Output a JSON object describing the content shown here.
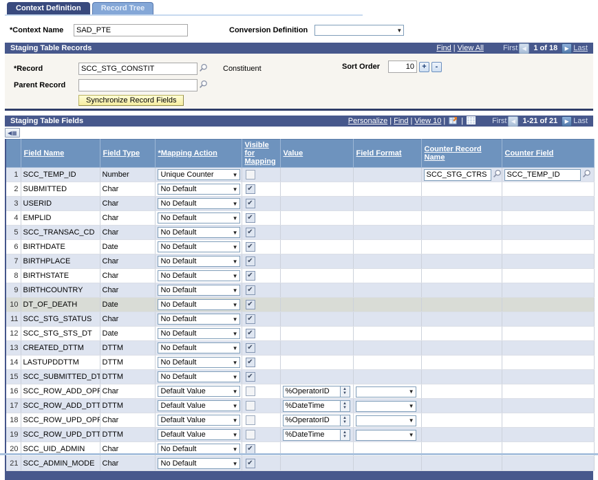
{
  "tabs": [
    {
      "label": "Context Definition",
      "active": true
    },
    {
      "label": "Record Tree",
      "active": false
    }
  ],
  "header": {
    "context_name_label": "*Context Name",
    "context_name_value": "SAD_PTE",
    "conversion_definition_label": "Conversion Definition",
    "conversion_definition_value": ""
  },
  "records_section": {
    "title": "Staging Table Records",
    "nav": {
      "find": "Find",
      "view_all": "View All",
      "first": "First",
      "position": "1 of 18",
      "last": "Last"
    },
    "record_label": "*Record",
    "record_value": "SCC_STG_CONSTIT",
    "record_description": "Constituent",
    "sort_order_label": "Sort Order",
    "sort_order_value": "10",
    "plus_label": "+",
    "minus_label": "-",
    "parent_record_label": "Parent Record",
    "parent_record_value": "",
    "sync_button_label": "Synchronize Record Fields"
  },
  "fields_section": {
    "title": "Staging Table Fields",
    "toolbar": {
      "personalize": "Personalize",
      "find": "Find",
      "view": "View 10",
      "first": "First",
      "position": "1-21 of 21",
      "last": "Last"
    },
    "columns": [
      "Field Name",
      "Field Type",
      "*Mapping Action",
      "Visible for Mapping",
      "Value",
      "Field Format",
      "Counter Record Name",
      "Counter Field"
    ],
    "rows": [
      {
        "num": 1,
        "field_name": "SCC_TEMP_ID",
        "field_type": "Number",
        "mapping_action": "Unique Counter",
        "visible": false,
        "counter_record": "SCC_STG_CTRS",
        "counter_field": "SCC_TEMP_ID"
      },
      {
        "num": 2,
        "field_name": "SUBMITTED",
        "field_type": "Char",
        "mapping_action": "No Default",
        "visible": true
      },
      {
        "num": 3,
        "field_name": "USERID",
        "field_type": "Char",
        "mapping_action": "No Default",
        "visible": true
      },
      {
        "num": 4,
        "field_name": "EMPLID",
        "field_type": "Char",
        "mapping_action": "No Default",
        "visible": true
      },
      {
        "num": 5,
        "field_name": "SCC_TRANSAC_CD",
        "field_type": "Char",
        "mapping_action": "No Default",
        "visible": true
      },
      {
        "num": 6,
        "field_name": "BIRTHDATE",
        "field_type": "Date",
        "mapping_action": "No Default",
        "visible": true
      },
      {
        "num": 7,
        "field_name": "BIRTHPLACE",
        "field_type": "Char",
        "mapping_action": "No Default",
        "visible": true
      },
      {
        "num": 8,
        "field_name": "BIRTHSTATE",
        "field_type": "Char",
        "mapping_action": "No Default",
        "visible": true
      },
      {
        "num": 9,
        "field_name": "BIRTHCOUNTRY",
        "field_type": "Char",
        "mapping_action": "No Default",
        "visible": true
      },
      {
        "num": 10,
        "field_name": "DT_OF_DEATH",
        "field_type": "Date",
        "mapping_action": "No Default",
        "visible": true,
        "shaded": true
      },
      {
        "num": 11,
        "field_name": "SCC_STG_STATUS",
        "field_type": "Char",
        "mapping_action": "No Default",
        "visible": true
      },
      {
        "num": 12,
        "field_name": "SCC_STG_STS_DT",
        "field_type": "Date",
        "mapping_action": "No Default",
        "visible": true
      },
      {
        "num": 13,
        "field_name": "CREATED_DTTM",
        "field_type": "DTTM",
        "mapping_action": "No Default",
        "visible": true
      },
      {
        "num": 14,
        "field_name": "LASTUPDDTTM",
        "field_type": "DTTM",
        "mapping_action": "No Default",
        "visible": true
      },
      {
        "num": 15,
        "field_name": "SCC_SUBMITTED_DTTM",
        "field_type": "DTTM",
        "mapping_action": "No Default",
        "visible": true
      },
      {
        "num": 16,
        "field_name": "SCC_ROW_ADD_OPRID",
        "field_type": "Char",
        "mapping_action": "Default Value",
        "visible": false,
        "value": "%OperatorID",
        "has_format": true
      },
      {
        "num": 17,
        "field_name": "SCC_ROW_ADD_DTTM",
        "field_type": "DTTM",
        "mapping_action": "Default Value",
        "visible": false,
        "value": "%DateTime",
        "has_format": true
      },
      {
        "num": 18,
        "field_name": "SCC_ROW_UPD_OPRID",
        "field_type": "Char",
        "mapping_action": "Default Value",
        "visible": false,
        "value": "%OperatorID",
        "has_format": true
      },
      {
        "num": 19,
        "field_name": "SCC_ROW_UPD_DTTM",
        "field_type": "DTTM",
        "mapping_action": "Default Value",
        "visible": false,
        "value": "%DateTime",
        "has_format": true
      },
      {
        "num": 20,
        "field_name": "SCC_UID_ADMIN",
        "field_type": "Char",
        "mapping_action": "No Default",
        "visible": true
      },
      {
        "num": 21,
        "field_name": "SCC_ADMIN_MODE",
        "field_type": "Char",
        "mapping_action": "No Default",
        "visible": true
      }
    ]
  },
  "colors": {
    "section_bar": "#47588c",
    "column_header": "#6e93be",
    "tab_active": "#394a7e",
    "tab_inactive": "#84a7d7",
    "row_alt": "#dee4f0",
    "row_shaded": "#d9dcd6",
    "yellow_button": "#f9f0a6",
    "bottom_line": "#a9c2de"
  }
}
